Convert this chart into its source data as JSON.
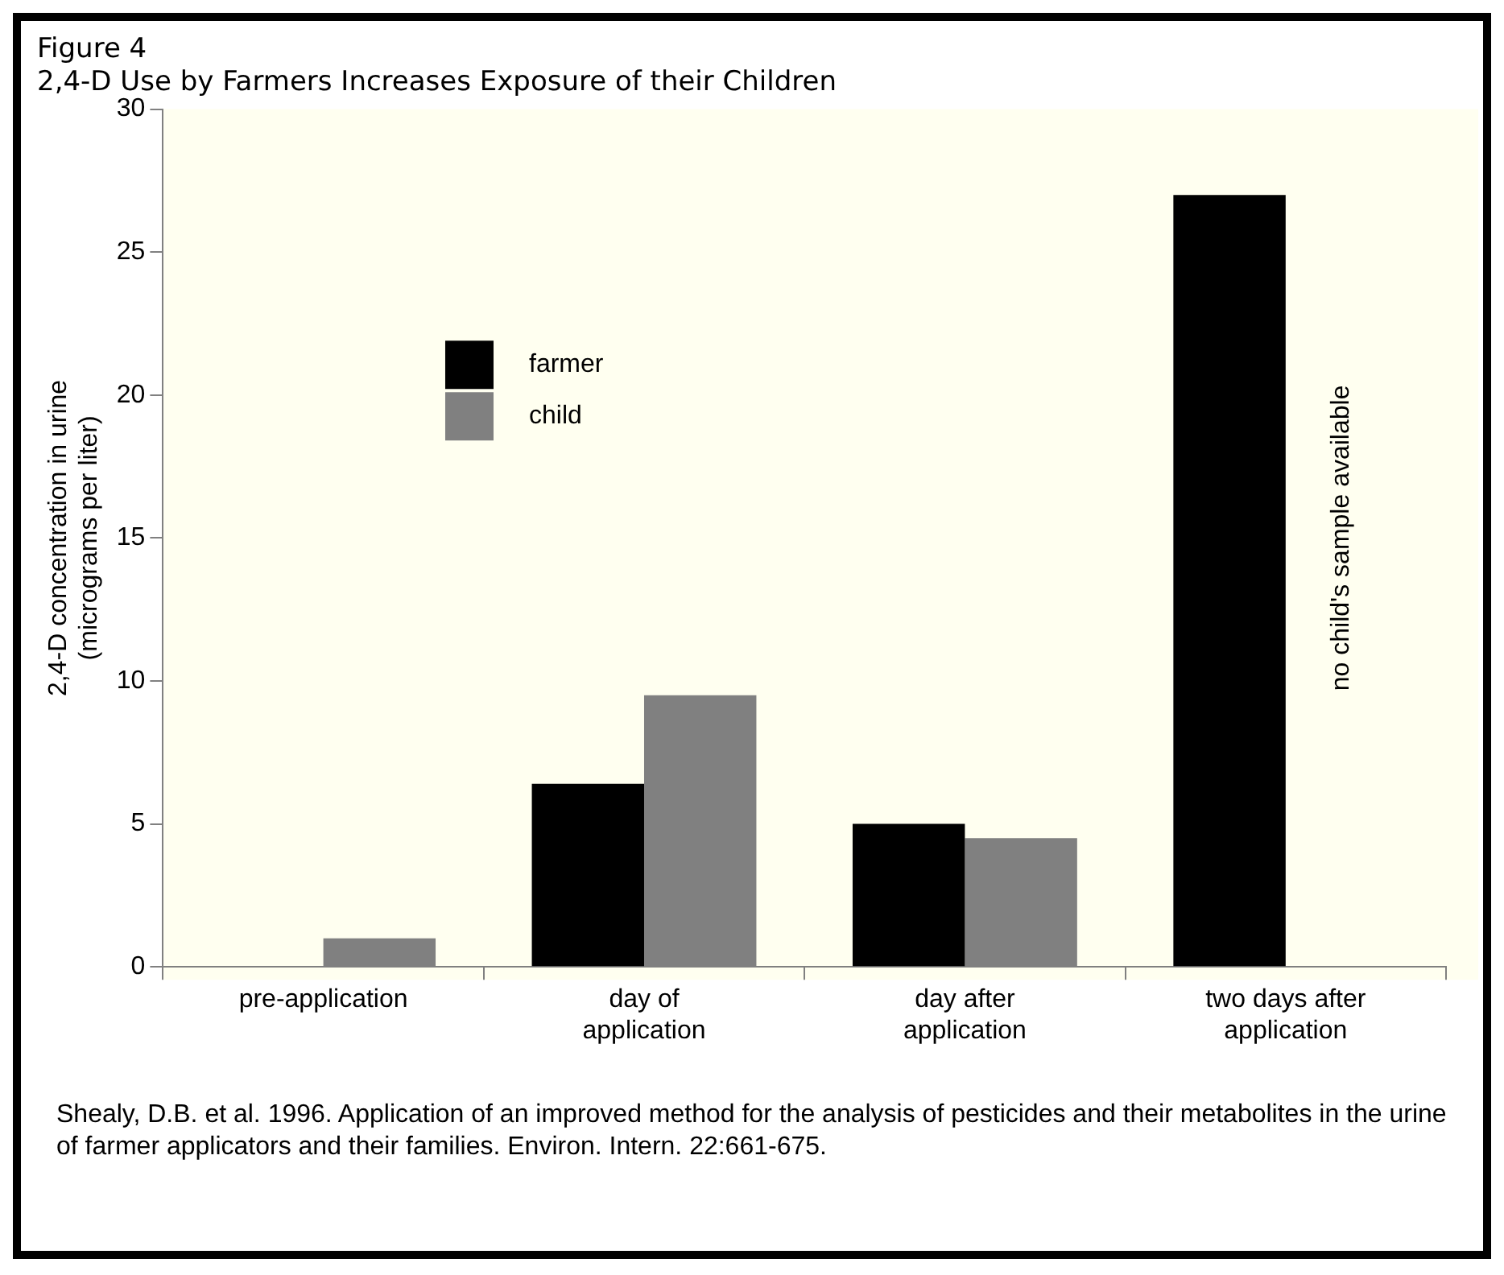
{
  "chart_data": {
    "type": "bar",
    "title": "Figure 4",
    "subtitle": "2,4-D Use by Farmers Increases Exposure of their Children",
    "ylabel": "2,4-D concentration in urine\n(micrograms per liter)",
    "categories": [
      "pre-application",
      "day of\napplication",
      "day after\napplication",
      "two days after\napplication"
    ],
    "series": [
      {
        "name": "farmer",
        "color": "#000000",
        "values": [
          0,
          6.4,
          5.0,
          27
        ]
      },
      {
        "name": "child",
        "color": "#808080",
        "values": [
          1.0,
          9.5,
          4.5,
          null
        ]
      }
    ],
    "ylim": [
      0,
      30
    ],
    "yticks": [
      0,
      5,
      10,
      15,
      20,
      25,
      30
    ],
    "grid": false,
    "legend": "top left",
    "annotations": [
      {
        "text": "no child's sample available",
        "x": "two days after\napplication",
        "y": 15
      },
      "Shealy, D.B. et al. 1996. Application of an improved method for the analysis of pesticides and their metabolites in the urine of farmer applicators and their families. Environ. Intern. 22:661-675."
    ]
  }
}
